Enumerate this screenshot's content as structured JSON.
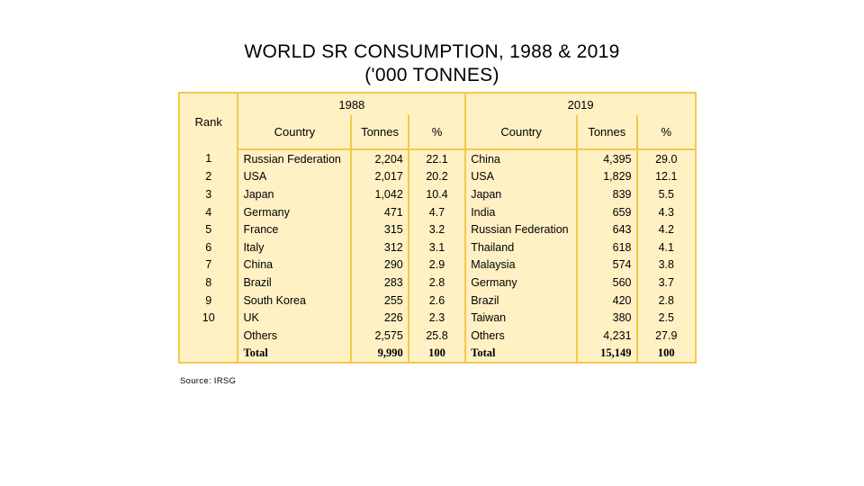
{
  "title": {
    "line1": "WORLD SR CONSUMPTION, 1988 & 2019",
    "line2": "('000 TONNES)"
  },
  "table": {
    "rank_header": "Rank",
    "year_1988": "1988",
    "year_2019": "2019",
    "col_country": "Country",
    "col_tonnes": "Tonnes",
    "col_pct": "%",
    "rows": [
      {
        "rank": "1",
        "c88": "Russian Federation",
        "t88": "2,204",
        "p88": "22.1",
        "c19": "China",
        "t19": "4,395",
        "p19": "29.0"
      },
      {
        "rank": "2",
        "c88": "USA",
        "t88": "2,017",
        "p88": "20.2",
        "c19": "USA",
        "t19": "1,829",
        "p19": "12.1"
      },
      {
        "rank": "3",
        "c88": "Japan",
        "t88": "1,042",
        "p88": "10.4",
        "c19": "Japan",
        "t19": "839",
        "p19": "5.5"
      },
      {
        "rank": "4",
        "c88": "Germany",
        "t88": "471",
        "p88": "4.7",
        "c19": "India",
        "t19": "659",
        "p19": "4.3"
      },
      {
        "rank": "5",
        "c88": "France",
        "t88": "315",
        "p88": "3.2",
        "c19": "Russian Federation",
        "t19": "643",
        "p19": "4.2"
      },
      {
        "rank": "6",
        "c88": "Italy",
        "t88": "312",
        "p88": "3.1",
        "c19": "Thailand",
        "t19": "618",
        "p19": "4.1"
      },
      {
        "rank": "7",
        "c88": "China",
        "t88": "290",
        "p88": "2.9",
        "c19": "Malaysia",
        "t19": "574",
        "p19": "3.8"
      },
      {
        "rank": "8",
        "c88": "Brazil",
        "t88": "283",
        "p88": "2.8",
        "c19": "Germany",
        "t19": "560",
        "p19": "3.7"
      },
      {
        "rank": "9",
        "c88": "South Korea",
        "t88": "255",
        "p88": "2.6",
        "c19": "Brazil",
        "t19": "420",
        "p19": "2.8"
      },
      {
        "rank": "10",
        "c88": "UK",
        "t88": "226",
        "p88": "2.3",
        "c19": "Taiwan",
        "t19": "380",
        "p19": "2.5"
      },
      {
        "rank": "",
        "c88": "Others",
        "t88": "2,575",
        "p88": "25.8",
        "c19": "Others",
        "t19": "4,231",
        "p19": "27.9"
      }
    ],
    "total": {
      "c88": "Total",
      "t88": "9,990",
      "p88": "100",
      "c19": "Total",
      "t19": "15,149",
      "p19": "100"
    }
  },
  "source": "Source: IRSG",
  "colors": {
    "table_fill": "#fff1c4",
    "table_border": "#f2c94c"
  }
}
